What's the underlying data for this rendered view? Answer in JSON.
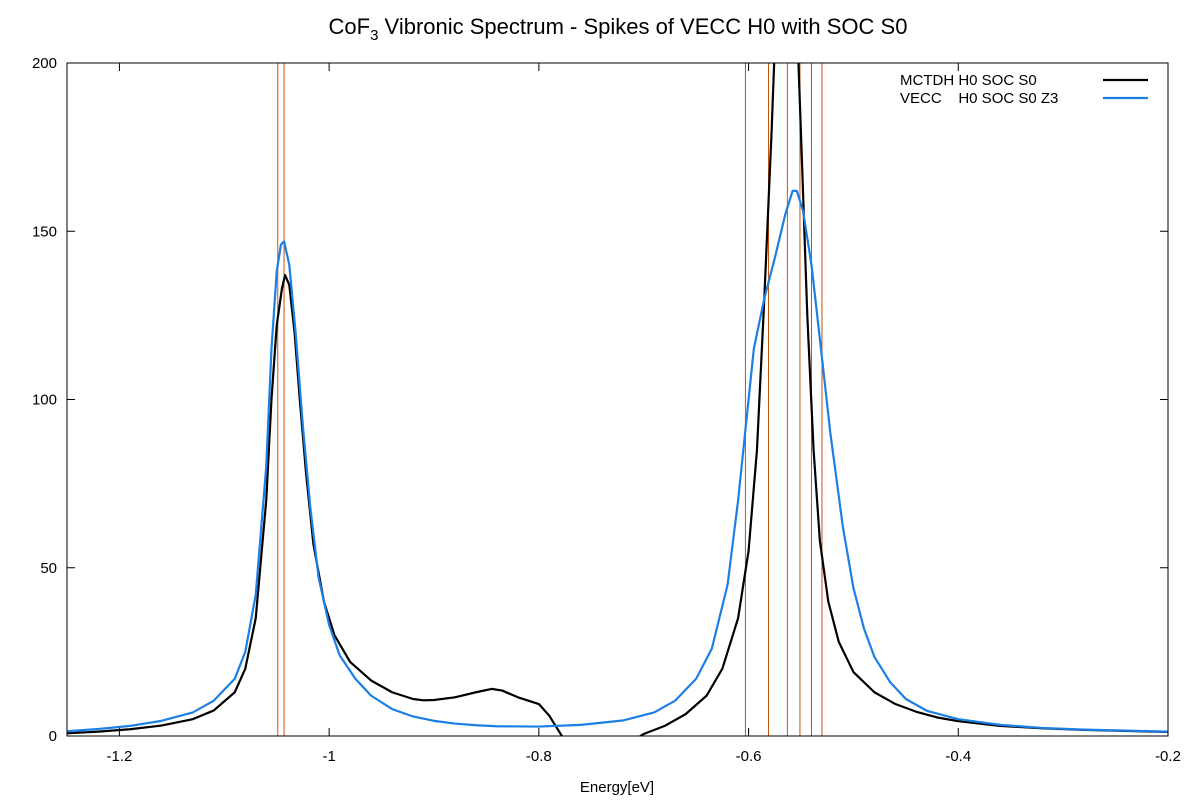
{
  "chart_data": {
    "type": "line",
    "title": {
      "prefix": "CoF",
      "subscript": "3",
      "suffix": " Vibronic Spectrum - Spikes of VECC H0 with SOC S0"
    },
    "xlabel": "Energy[eV]",
    "ylabel": "",
    "xlim": [
      -1.25,
      -0.2
    ],
    "ylim": [
      0,
      200
    ],
    "xticks": [
      {
        "value": -1.2,
        "label": "-1.2"
      },
      {
        "value": -1.0,
        "label": "-1"
      },
      {
        "value": -0.8,
        "label": "-0.8"
      },
      {
        "value": -0.6,
        "label": "-0.6"
      },
      {
        "value": -0.4,
        "label": "-0.4"
      },
      {
        "value": -0.2,
        "label": "-0.2"
      }
    ],
    "yticks": [
      {
        "value": 0,
        "label": "0"
      },
      {
        "value": 50,
        "label": "50"
      },
      {
        "value": 100,
        "label": "100"
      },
      {
        "value": 150,
        "label": "150"
      },
      {
        "value": 200,
        "label": "200"
      }
    ],
    "grid": false,
    "zero_line": "dotted",
    "legend_position": "top-right",
    "series": [
      {
        "name": "MCTDH H0 SOC S0",
        "color": "#000000",
        "points": [
          [
            -1.25,
            0.8
          ],
          [
            -1.22,
            1.3
          ],
          [
            -1.19,
            2.0
          ],
          [
            -1.16,
            3.1
          ],
          [
            -1.13,
            5.0
          ],
          [
            -1.11,
            7.6
          ],
          [
            -1.09,
            13.0
          ],
          [
            -1.08,
            20.0
          ],
          [
            -1.07,
            35.0
          ],
          [
            -1.06,
            70.0
          ],
          [
            -1.055,
            100.0
          ],
          [
            -1.05,
            122.0
          ],
          [
            -1.045,
            133.0
          ],
          [
            -1.042,
            137.0
          ],
          [
            -1.038,
            134.0
          ],
          [
            -1.033,
            120.0
          ],
          [
            -1.028,
            100.0
          ],
          [
            -1.022,
            78.0
          ],
          [
            -1.015,
            57.0
          ],
          [
            -1.005,
            40.0
          ],
          [
            -0.995,
            30.0
          ],
          [
            -0.98,
            22.0
          ],
          [
            -0.96,
            16.5
          ],
          [
            -0.94,
            13.0
          ],
          [
            -0.92,
            11.0
          ],
          [
            -0.91,
            10.6
          ],
          [
            -0.9,
            10.7
          ],
          [
            -0.88,
            11.5
          ],
          [
            -0.86,
            13.0
          ],
          [
            -0.845,
            14.0
          ],
          [
            -0.835,
            13.5
          ],
          [
            -0.82,
            11.5
          ],
          [
            -0.8,
            9.5
          ],
          [
            -0.79,
            6.0
          ],
          [
            -0.782,
            2.0
          ],
          [
            -0.776,
            -1.0
          ],
          [
            -0.708,
            -1.0
          ],
          [
            -0.7,
            0.6
          ],
          [
            -0.68,
            3.0
          ],
          [
            -0.66,
            6.5
          ],
          [
            -0.64,
            12.0
          ],
          [
            -0.625,
            20.0
          ],
          [
            -0.61,
            35.0
          ],
          [
            -0.6,
            55.0
          ],
          [
            -0.592,
            85.0
          ],
          [
            -0.585,
            130.0
          ],
          [
            -0.578,
            180.0
          ],
          [
            -0.575,
            205.0
          ],
          [
            -0.553,
            205.0
          ],
          [
            -0.549,
            170.0
          ],
          [
            -0.544,
            125.0
          ],
          [
            -0.538,
            85.0
          ],
          [
            -0.532,
            58.0
          ],
          [
            -0.524,
            40.0
          ],
          [
            -0.514,
            28.0
          ],
          [
            -0.5,
            19.0
          ],
          [
            -0.48,
            13.0
          ],
          [
            -0.46,
            9.5
          ],
          [
            -0.44,
            7.2
          ],
          [
            -0.42,
            5.5
          ],
          [
            -0.4,
            4.4
          ],
          [
            -0.36,
            3.0
          ],
          [
            -0.32,
            2.3
          ],
          [
            -0.28,
            1.8
          ],
          [
            -0.24,
            1.5
          ],
          [
            -0.2,
            1.2
          ]
        ]
      },
      {
        "name": "VECC    H0 SOC S0 Z3",
        "color": "#1c7fe3",
        "points": [
          [
            -1.25,
            1.4
          ],
          [
            -1.22,
            2.1
          ],
          [
            -1.19,
            3.0
          ],
          [
            -1.16,
            4.5
          ],
          [
            -1.13,
            7.0
          ],
          [
            -1.11,
            10.5
          ],
          [
            -1.09,
            17.0
          ],
          [
            -1.08,
            25.0
          ],
          [
            -1.07,
            42.0
          ],
          [
            -1.06,
            80.0
          ],
          [
            -1.055,
            115.0
          ],
          [
            -1.05,
            138.0
          ],
          [
            -1.046,
            146.0
          ],
          [
            -1.043,
            147.0
          ],
          [
            -1.038,
            140.0
          ],
          [
            -1.032,
            120.0
          ],
          [
            -1.025,
            92.0
          ],
          [
            -1.018,
            68.0
          ],
          [
            -1.01,
            47.0
          ],
          [
            -1.0,
            33.0
          ],
          [
            -0.99,
            24.0
          ],
          [
            -0.975,
            17.0
          ],
          [
            -0.96,
            12.0
          ],
          [
            -0.94,
            8.0
          ],
          [
            -0.92,
            5.8
          ],
          [
            -0.9,
            4.5
          ],
          [
            -0.88,
            3.7
          ],
          [
            -0.86,
            3.2
          ],
          [
            -0.84,
            2.9
          ],
          [
            -0.8,
            2.8
          ],
          [
            -0.76,
            3.3
          ],
          [
            -0.72,
            4.6
          ],
          [
            -0.69,
            7.0
          ],
          [
            -0.67,
            10.5
          ],
          [
            -0.65,
            17.0
          ],
          [
            -0.635,
            26.0
          ],
          [
            -0.62,
            45.0
          ],
          [
            -0.61,
            70.0
          ],
          [
            -0.6,
            100.0
          ],
          [
            -0.595,
            115.0
          ],
          [
            -0.585,
            130.0
          ],
          [
            -0.575,
            142.0
          ],
          [
            -0.565,
            155.0
          ],
          [
            -0.558,
            162.0
          ],
          [
            -0.554,
            162.0
          ],
          [
            -0.548,
            156.0
          ],
          [
            -0.54,
            140.0
          ],
          [
            -0.532,
            118.0
          ],
          [
            -0.522,
            90.0
          ],
          [
            -0.51,
            62.0
          ],
          [
            -0.5,
            44.0
          ],
          [
            -0.49,
            32.0
          ],
          [
            -0.48,
            23.5
          ],
          [
            -0.465,
            16.0
          ],
          [
            -0.45,
            11.0
          ],
          [
            -0.43,
            7.5
          ],
          [
            -0.4,
            5.0
          ],
          [
            -0.36,
            3.3
          ],
          [
            -0.32,
            2.4
          ],
          [
            -0.28,
            1.9
          ],
          [
            -0.24,
            1.6
          ],
          [
            -0.2,
            1.3
          ]
        ]
      }
    ],
    "spikes": {
      "color": "#c9500b",
      "x": [
        -1.049,
        -1.043,
        -0.603,
        -0.581,
        -0.563,
        -0.551,
        -0.54,
        -0.53
      ]
    }
  }
}
